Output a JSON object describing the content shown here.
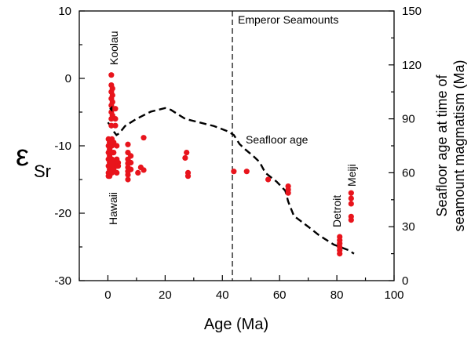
{
  "chart_data": {
    "type": "scatter",
    "xlabel": "Age (Ma)",
    "ylabel_left": "ε",
    "ylabel_left_sub": "Sr",
    "ylabel_right_line1": "Seafloor age at time of",
    "ylabel_right_line2": "seamount magmatism (Ma)",
    "xlim": [
      -10,
      100
    ],
    "ylim_left": [
      -30,
      10
    ],
    "ylim_right": [
      0,
      150
    ],
    "x_ticks": [
      0,
      20,
      40,
      60,
      80,
      100
    ],
    "y_left_ticks": [
      -30,
      -20,
      -10,
      0,
      10
    ],
    "y_right_ticks": [
      0,
      30,
      60,
      90,
      120,
      150
    ],
    "colors": {
      "points": "#e8141c",
      "line": "#000000"
    },
    "annotations": {
      "hawaii": "Hawaii",
      "koolau": "Koolau",
      "emperor": "Emperor Seamounts",
      "seafloor": "Seafloor age",
      "detroit": "Detroit",
      "meiji": "Meiji"
    },
    "emperor_boundary_x": 43.5,
    "series": [
      {
        "kind": "points",
        "axis": "left",
        "points": [
          [
            0.2,
            -9
          ],
          [
            0.2,
            -10
          ],
          [
            0.2,
            -11
          ],
          [
            0.2,
            -12
          ],
          [
            0.2,
            -13
          ],
          [
            0.2,
            -14
          ],
          [
            0.2,
            -14.5
          ],
          [
            0.6,
            -9.5
          ],
          [
            0.6,
            -10.5
          ],
          [
            0.6,
            -11.5
          ],
          [
            0.6,
            -12.5
          ],
          [
            0.6,
            -13.5
          ],
          [
            0.6,
            -14.5
          ],
          [
            1.2,
            0.5
          ],
          [
            1.2,
            -1
          ],
          [
            1.2,
            -2
          ],
          [
            1.2,
            -3
          ],
          [
            1.2,
            -4
          ],
          [
            1.2,
            -5
          ],
          [
            1.2,
            -6
          ],
          [
            1.2,
            -7
          ],
          [
            1.6,
            -1.5
          ],
          [
            1.6,
            -2.5
          ],
          [
            1.6,
            -3.5
          ],
          [
            1.6,
            -4.5
          ],
          [
            1.6,
            -5.5
          ],
          [
            1.4,
            -9
          ],
          [
            1.4,
            -10
          ],
          [
            1.4,
            -11
          ],
          [
            1.4,
            -12
          ],
          [
            1.4,
            -13
          ],
          [
            1.4,
            -14
          ],
          [
            2.0,
            -9.5
          ],
          [
            2.0,
            -11
          ],
          [
            2.0,
            -12.5
          ],
          [
            2.0,
            -13.5
          ],
          [
            2.6,
            -4.5
          ],
          [
            2.6,
            -6
          ],
          [
            2.6,
            -7
          ],
          [
            3.1,
            -10
          ],
          [
            3.1,
            -12
          ],
          [
            3.1,
            -13
          ],
          [
            3.1,
            -14
          ],
          [
            3.6,
            -12.5
          ],
          [
            3.6,
            -13
          ],
          [
            7,
            -9.8
          ],
          [
            7,
            -11
          ],
          [
            7,
            -12
          ],
          [
            7,
            -12.6
          ],
          [
            7,
            -13.2
          ],
          [
            7,
            -13.8
          ],
          [
            7,
            -14.3
          ],
          [
            7,
            -15
          ],
          [
            8,
            -11.5
          ],
          [
            8,
            -12.5
          ],
          [
            8,
            -13.5
          ],
          [
            10.5,
            -14
          ],
          [
            11.5,
            -13.2
          ],
          [
            12.5,
            -8.8
          ],
          [
            12.5,
            -13.6
          ],
          [
            27,
            -11.8
          ],
          [
            27.5,
            -11
          ],
          [
            28,
            -14
          ],
          [
            28,
            -14.5
          ],
          [
            44,
            -13.8
          ],
          [
            48.5,
            -13.8
          ],
          [
            56,
            -15
          ],
          [
            63,
            -16
          ],
          [
            63,
            -16.5
          ],
          [
            63,
            -17
          ],
          [
            81,
            -23.5
          ],
          [
            81,
            -24
          ],
          [
            81,
            -24.5
          ],
          [
            81,
            -25
          ],
          [
            81,
            -25.5
          ],
          [
            81,
            -26
          ],
          [
            85,
            -17
          ],
          [
            85,
            -17.8
          ],
          [
            85,
            -18.6
          ],
          [
            85,
            -20.5
          ],
          [
            85,
            -21
          ]
        ]
      },
      {
        "kind": "line",
        "axis": "right",
        "style": "dashed",
        "points": [
          [
            0,
            88
          ],
          [
            1,
            86
          ],
          [
            2,
            83
          ],
          [
            3,
            81
          ],
          [
            4,
            82
          ],
          [
            6,
            86
          ],
          [
            10,
            90
          ],
          [
            15,
            94
          ],
          [
            20,
            96
          ],
          [
            22,
            95
          ],
          [
            27,
            90
          ],
          [
            32,
            88
          ],
          [
            37,
            86
          ],
          [
            42,
            83
          ],
          [
            44,
            81
          ],
          [
            46,
            76
          ],
          [
            48,
            73
          ],
          [
            51,
            69
          ],
          [
            53,
            66
          ],
          [
            55,
            60
          ],
          [
            59,
            55
          ],
          [
            62,
            50
          ],
          [
            63,
            44
          ],
          [
            64,
            40
          ],
          [
            65,
            36
          ],
          [
            70,
            30
          ],
          [
            74,
            25
          ],
          [
            79,
            20
          ],
          [
            84,
            17
          ],
          [
            86,
            15
          ]
        ]
      }
    ]
  }
}
